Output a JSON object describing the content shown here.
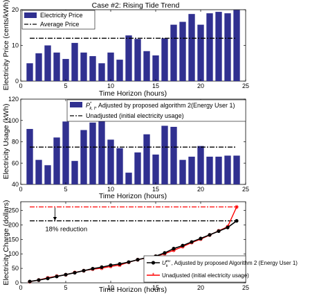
{
  "chart_data": [
    {
      "type": "bar",
      "title": "Case #2: Rising Tide Trend",
      "xlabel": "Time Horizon (hours)",
      "ylabel": "Electricity Price (cents/kWh)",
      "xlim": [
        0,
        25
      ],
      "ylim": [
        0,
        20
      ],
      "xticks": [
        0,
        5,
        10,
        15,
        20,
        25
      ],
      "yticks": [
        0,
        10,
        20
      ],
      "x": [
        1,
        2,
        3,
        4,
        5,
        6,
        7,
        8,
        9,
        10,
        11,
        12,
        13,
        14,
        15,
        16,
        17,
        18,
        19,
        20,
        21,
        22,
        23,
        24
      ],
      "series": [
        {
          "name": "Electricity Price",
          "kind": "bar",
          "color": "#303090",
          "values": [
            5,
            7.8,
            10,
            8,
            6.2,
            10.7,
            8,
            7,
            5,
            8,
            6,
            12.8,
            11.8,
            8.4,
            7.2,
            12,
            15.8,
            16.6,
            18.8,
            15.8,
            19,
            19.4,
            19,
            19.9
          ]
        },
        {
          "name": "Average Price",
          "kind": "hline",
          "style": "dash-dot",
          "color": "#000000",
          "value": 12
        }
      ],
      "legend": "top-left",
      "grid": false
    },
    {
      "type": "bar",
      "xlabel": "Time Horizon (hours)",
      "ylabel": "Electricity Usage (kWh)",
      "xlim": [
        0,
        25
      ],
      "ylim": [
        40,
        120
      ],
      "xticks": [
        0,
        5,
        10,
        15,
        20,
        25
      ],
      "yticks": [
        40,
        60,
        80,
        100,
        120
      ],
      "x": [
        1,
        2,
        3,
        4,
        5,
        6,
        7,
        8,
        9,
        10,
        11,
        12,
        13,
        14,
        15,
        16,
        17,
        18,
        19,
        20,
        21,
        22,
        23,
        24
      ],
      "series": [
        {
          "name_prefix": "P",
          "name_sup": "*",
          "name_sub": "k, t",
          "name_suffix": ", Adjusted by proposed algorithm 2(Energy User 1)",
          "kind": "bar",
          "color": "#303090",
          "values": [
            92,
            63,
            58,
            84,
            99,
            62,
            91,
            98,
            104,
            82,
            74,
            51,
            70,
            87,
            68,
            95,
            94,
            63,
            66,
            76,
            66,
            66,
            67,
            67
          ]
        },
        {
          "name": "Unadjusted (initial electricity usage)",
          "kind": "hline",
          "style": "dash-dot",
          "color": "#000000",
          "value": 75
        }
      ],
      "legend": "top-right",
      "grid": false
    },
    {
      "type": "line",
      "xlabel": "Time Horizon (hours)",
      "ylabel": "Electricity Charge (dollars)",
      "xlim": [
        0,
        25
      ],
      "ylim": [
        0,
        280
      ],
      "xticks": [
        0,
        5,
        10,
        15,
        20,
        25
      ],
      "yticks": [
        0,
        50,
        100,
        150,
        200,
        250
      ],
      "x": [
        1,
        2,
        3,
        4,
        5,
        6,
        7,
        8,
        9,
        10,
        11,
        12,
        13,
        14,
        15,
        16,
        17,
        18,
        19,
        20,
        21,
        22,
        23,
        24
      ],
      "series": [
        {
          "name_prefix": "U",
          "name_sup": "eu",
          "name_sub": "k",
          "name_suffix": ", Adjusted by proposed Algorithm 2 (Energy User 1)",
          "color": "#000000",
          "marker": "circle",
          "values": [
            4.6,
            9.5,
            15.3,
            22,
            28.2,
            34.8,
            42,
            48.9,
            54.1,
            60.7,
            65.2,
            71.7,
            79.9,
            87.2,
            92,
            103.4,
            118.2,
            128.7,
            141.1,
            153.1,
            165.6,
            178.4,
            191.1,
            214
          ]
        },
        {
          "name": "Unadjusted (initial electricity usage)",
          "color": "#ff0000",
          "marker": "star",
          "values": [
            3.8,
            9.6,
            17.1,
            23.1,
            27.8,
            35.8,
            41.8,
            47.1,
            50.8,
            56.8,
            61.3,
            70.9,
            79.8,
            86.1,
            91.5,
            100.5,
            112.4,
            124.8,
            138.9,
            150.8,
            165,
            179.6,
            193.9,
            262
          ]
        }
      ],
      "hlines": [
        {
          "value": 262,
          "style": "dash-dot",
          "color": "#ff0000"
        },
        {
          "value": 214,
          "style": "dash-dot",
          "color": "#000000"
        }
      ],
      "annotation": {
        "text": "18% reduction",
        "arrow_from": 262,
        "arrow_to": 214,
        "x": 3.8
      },
      "legend": "bottom-right",
      "grid": false
    }
  ]
}
